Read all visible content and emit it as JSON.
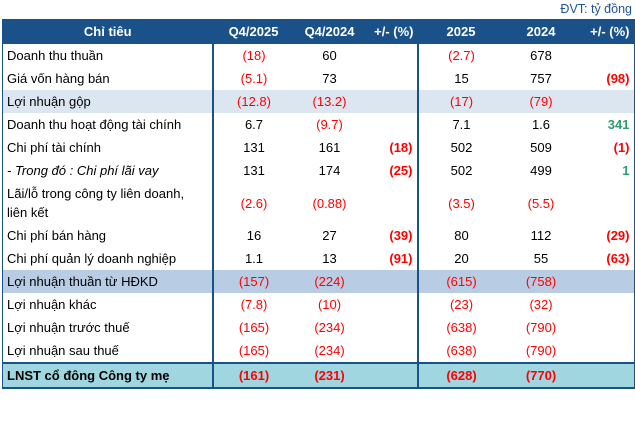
{
  "unit_label": "ĐVT: tỷ đồng",
  "colors": {
    "header_bg": "#1B5189",
    "header_text": "#FFFFFF",
    "shade_light_blue": "#DCE6F1",
    "shade_medium_blue": "#B8CCE4",
    "total_row_bg": "#A0D6E0",
    "negative_red": "#FF0000",
    "positive_green": "#2E9B72",
    "border_blue": "#1B5189",
    "unit_label_blue": "#1F5496"
  },
  "table": {
    "headers": [
      "Chỉ tiêu",
      "Q4/2025",
      "Q4/2024",
      "+/- (%)",
      "2025",
      "2024",
      "+/- (%)"
    ],
    "rows": [
      {
        "label": "Doanh thu thuần",
        "style": "",
        "cells": [
          {
            "v": "(18)",
            "s": "r"
          },
          {
            "v": "60",
            "s": ""
          },
          {
            "v": "",
            "s": ""
          },
          {
            "v": "(2.7)",
            "s": "r"
          },
          {
            "v": "678",
            "s": ""
          },
          {
            "v": "",
            "s": ""
          }
        ]
      },
      {
        "label": "Giá vốn hàng bán",
        "style": "",
        "cells": [
          {
            "v": "(5.1)",
            "s": "r"
          },
          {
            "v": "73",
            "s": ""
          },
          {
            "v": "",
            "s": ""
          },
          {
            "v": "15",
            "s": ""
          },
          {
            "v": "757",
            "s": ""
          },
          {
            "v": "(98)",
            "s": "rb"
          }
        ]
      },
      {
        "label": "Lợi nhuận gộp",
        "style": "shade1",
        "cells": [
          {
            "v": "(12.8)",
            "s": "r"
          },
          {
            "v": "(13.2)",
            "s": "r"
          },
          {
            "v": "",
            "s": ""
          },
          {
            "v": "(17)",
            "s": "r"
          },
          {
            "v": "(79)",
            "s": "r"
          },
          {
            "v": "",
            "s": ""
          }
        ]
      },
      {
        "label": "Doanh thu hoạt động tài chính",
        "style": "",
        "cells": [
          {
            "v": "6.7",
            "s": ""
          },
          {
            "v": "(9.7)",
            "s": "r"
          },
          {
            "v": "",
            "s": ""
          },
          {
            "v": "7.1",
            "s": ""
          },
          {
            "v": "1.6",
            "s": ""
          },
          {
            "v": "341",
            "s": "gb"
          }
        ]
      },
      {
        "label": "Chi phí tài chính",
        "style": "",
        "cells": [
          {
            "v": "131",
            "s": ""
          },
          {
            "v": "161",
            "s": ""
          },
          {
            "v": "(18)",
            "s": "rb"
          },
          {
            "v": "502",
            "s": ""
          },
          {
            "v": "509",
            "s": ""
          },
          {
            "v": "(1)",
            "s": "rb"
          }
        ]
      },
      {
        "label": "- Trong đó : Chi phí lãi vay",
        "style": "italic",
        "cells": [
          {
            "v": "131",
            "s": ""
          },
          {
            "v": "174",
            "s": ""
          },
          {
            "v": "(25)",
            "s": "rb"
          },
          {
            "v": "502",
            "s": ""
          },
          {
            "v": "499",
            "s": ""
          },
          {
            "v": "1",
            "s": "gb"
          }
        ]
      },
      {
        "label": "Lãi/lỗ trong công ty liên doanh, liên kết",
        "style": "",
        "cells": [
          {
            "v": "(2.6)",
            "s": "r"
          },
          {
            "v": "(0.88)",
            "s": "r"
          },
          {
            "v": "",
            "s": ""
          },
          {
            "v": "(3.5)",
            "s": "r"
          },
          {
            "v": "(5.5)",
            "s": "r"
          },
          {
            "v": "",
            "s": ""
          }
        ]
      },
      {
        "label": "Chi phí bán hàng",
        "style": "",
        "cells": [
          {
            "v": "16",
            "s": ""
          },
          {
            "v": "27",
            "s": ""
          },
          {
            "v": "(39)",
            "s": "rb"
          },
          {
            "v": "80",
            "s": ""
          },
          {
            "v": "112",
            "s": ""
          },
          {
            "v": "(29)",
            "s": "rb"
          }
        ]
      },
      {
        "label": "Chi phí quản lý doanh nghiệp",
        "style": "",
        "cells": [
          {
            "v": "1.1",
            "s": ""
          },
          {
            "v": "13",
            "s": ""
          },
          {
            "v": "(91)",
            "s": "rb"
          },
          {
            "v": "20",
            "s": ""
          },
          {
            "v": "55",
            "s": ""
          },
          {
            "v": "(63)",
            "s": "rb"
          }
        ]
      },
      {
        "label": "Lợi nhuận thuần từ HĐKD",
        "style": "shade2",
        "cells": [
          {
            "v": "(157)",
            "s": "r"
          },
          {
            "v": "(224)",
            "s": "r"
          },
          {
            "v": "",
            "s": ""
          },
          {
            "v": "(615)",
            "s": "r"
          },
          {
            "v": "(758)",
            "s": "r"
          },
          {
            "v": "",
            "s": ""
          }
        ]
      },
      {
        "label": "Lợi nhuận khác",
        "style": "",
        "cells": [
          {
            "v": "(7.8)",
            "s": "r"
          },
          {
            "v": "(10)",
            "s": "r"
          },
          {
            "v": "",
            "s": ""
          },
          {
            "v": "(23)",
            "s": "r"
          },
          {
            "v": "(32)",
            "s": "r"
          },
          {
            "v": "",
            "s": ""
          }
        ]
      },
      {
        "label": "Lợi nhuận trước thuế",
        "style": "",
        "cells": [
          {
            "v": "(165)",
            "s": "r"
          },
          {
            "v": "(234)",
            "s": "r"
          },
          {
            "v": "",
            "s": ""
          },
          {
            "v": "(638)",
            "s": "r"
          },
          {
            "v": "(790)",
            "s": "r"
          },
          {
            "v": "",
            "s": ""
          }
        ]
      },
      {
        "label": "Lợi nhuận sau thuế",
        "style": "",
        "cells": [
          {
            "v": "(165)",
            "s": "r"
          },
          {
            "v": "(234)",
            "s": "r"
          },
          {
            "v": "",
            "s": ""
          },
          {
            "v": "(638)",
            "s": "r"
          },
          {
            "v": "(790)",
            "s": "r"
          },
          {
            "v": "",
            "s": ""
          }
        ]
      },
      {
        "label": "LNST cổ đông Công ty mẹ",
        "style": "total",
        "cells": [
          {
            "v": "(161)",
            "s": "rb"
          },
          {
            "v": "(231)",
            "s": "rb"
          },
          {
            "v": "",
            "s": ""
          },
          {
            "v": "(628)",
            "s": "rb"
          },
          {
            "v": "(770)",
            "s": "rb"
          },
          {
            "v": "",
            "s": ""
          }
        ]
      }
    ]
  }
}
